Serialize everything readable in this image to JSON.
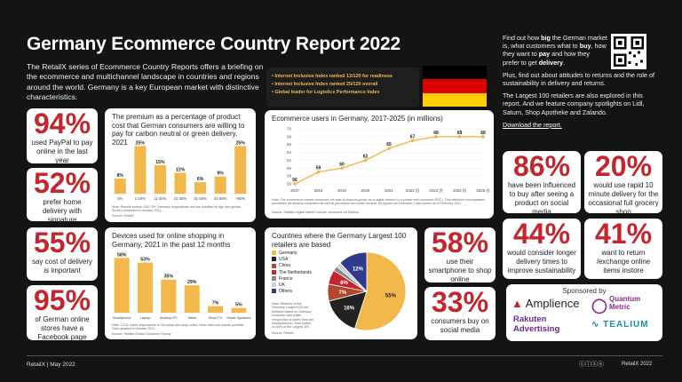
{
  "header": {
    "title": "Germany Ecommerce Country Report 2022",
    "intro": "The RetailX series of Ecommerce Country Reports offers a briefing on the ecommerce and multichannel landscape in countries and regions around the world. Germany is a key European market with distinctive characteristics."
  },
  "facts": [
    "Internet Inclusive Index ranked 12/120 for readiness",
    "Internet Inclusive Index ranked 25/120 overall",
    "Global leader for Logistics Performance Index"
  ],
  "flag_colors": [
    "#000000",
    "#dd0000",
    "#ffce00"
  ],
  "sidebar": {
    "p1_pre": "Find out how ",
    "p1_big": "big",
    "p1_mid": " the German market is, what customers what to ",
    "p1_buy": "buy",
    "p1_mid2": ", how they want to ",
    "p1_pay": "pay",
    "p1_mid3": " and how they prefer to get ",
    "p1_delivery": "delivery",
    "p1_end": ".",
    "p2": "Plus, find out about attitudes to returns and the role of sustainability in delivery and returns.",
    "p3": "The Largest 100 retailers are also explored in this report. And we feature company spotlights on Lidl, Saturn, Shop Apotheke and Zalando.",
    "download": "Download the report."
  },
  "stats_left": [
    {
      "value": "94%",
      "label": "used PayPal to pay online in the last year"
    },
    {
      "value": "52%",
      "label": "prefer home delivery with signature"
    },
    {
      "value": "55%",
      "label": "say cost of delivery is important"
    },
    {
      "value": "95%",
      "label": "of German online stores have a Facebook page"
    }
  ],
  "stats_mid": [
    {
      "value": "58%",
      "label": "use their smartphone to shop online"
    },
    {
      "value": "33%",
      "label": "consumers buy on social media"
    }
  ],
  "stats_right": [
    {
      "value": "86%",
      "label": "have been influenced to buy after seeing a product on social media"
    },
    {
      "value": "20%",
      "label": "would use rapid 10 minute delivery for the occasional full grocery shop"
    },
    {
      "value": "44%",
      "label": "would consider longer delivery times to improve sustainability"
    },
    {
      "value": "41%",
      "label": "want to return /exchange online items instore"
    }
  ],
  "chart1_title": "The premium as a percentage of product cost that German consumers are willing to pay for carbon neutral or green delivery, 2021",
  "chart1_note": "Note: Results include 1087 16+ Germany respondents and are stratified by age and gender. Survey conducted in January 2021.",
  "chart1_source": "Source: RetailX",
  "chart2_title": "Ecommerce users in Germany, 2017-2025 (in millions)",
  "chart2_note": "Note: The ecommerce market comprises the sale of physical goods via a digital channel to a private end consumer (B2C). This definition encompasses purchases via desktop computers as well as purchases via mobile devices. All figures are estimates. Data current as of February 2021.",
  "chart2_source": "Source: Statista Digital Market Outlook. Accessed via Statista",
  "chart3_title": "Devices used for online shopping in Germany, 2021 in the past 12 months",
  "chart3_note": "Note: 2,132 online respondents in Germany who shop online. More than one answer possible. Data updated to October 2021.",
  "chart3_source": "Source: Statista Global Consumer Survey",
  "chart4_title": "Countries where the Germany Largest 100 retailers are based",
  "chart4_note": "Note: Retailers in the Germany Largest 100 are selected based on Germany consumer web traffic, irrespective of where they are headquartered. Total based on 84% of the Largest 100.",
  "chart4_source": "Source: RetailX",
  "watermark": "RetailX 2022",
  "chart_data": [
    {
      "type": "bar",
      "categories": [
        "0%",
        "1-10%",
        "11-20%",
        "21-30%",
        "31-40%",
        "41-50%",
        ">50%"
      ],
      "values": [
        8,
        25,
        15,
        11,
        6,
        9,
        25
      ],
      "value_labels": [
        "8%",
        "25%",
        "15%",
        "11%",
        "6%",
        "9%",
        "25%"
      ],
      "color": "#f2b84b",
      "ylim": [
        0,
        28
      ]
    },
    {
      "type": "line",
      "x": [
        "2017",
        "2018",
        "2019",
        "2020",
        "2021",
        "2022 (f)",
        "2023 (f)",
        "2024 (f)",
        "2025 (f)"
      ],
      "values": [
        56,
        59,
        60,
        62,
        65,
        67,
        68,
        68,
        68
      ],
      "yticks": [
        56,
        58,
        60,
        62,
        64,
        66,
        68,
        70
      ],
      "ylim": [
        56,
        70
      ],
      "color": "#f2b84b"
    },
    {
      "type": "bar",
      "categories": [
        "Smartphone",
        "Laptop",
        "Desktop PC",
        "Tablet",
        "Smart TV",
        "Smart Speakers"
      ],
      "values": [
        58,
        53,
        35,
        29,
        7,
        5
      ],
      "value_labels": [
        "58%",
        "53%",
        "35%",
        "29%",
        "7%",
        "5%"
      ],
      "color": "#f2b84b",
      "ylim": [
        0,
        62
      ]
    },
    {
      "type": "pie",
      "labels": [
        "Germany",
        "USA",
        "China",
        "The Netherlands",
        "France",
        "UK",
        "Others"
      ],
      "values": [
        55,
        16,
        7,
        6,
        2,
        2,
        12
      ],
      "value_labels": [
        "55%",
        "16%",
        "7%",
        "6%",
        "",
        "",
        "12%"
      ],
      "colors": [
        "#f2b84b",
        "#222222",
        "#b5452a",
        "#c1272d",
        "#888888",
        "#cfcfcf",
        "#2e3a8c"
      ]
    }
  ],
  "sponsors": {
    "heading": "Sponsored by",
    "names": [
      "Amplience",
      "Quantum Metric",
      "Rakuten Advertising",
      "TEALIUM"
    ]
  },
  "footer": {
    "left": "RetailX | May 2022",
    "right": "RetailX 2022"
  }
}
